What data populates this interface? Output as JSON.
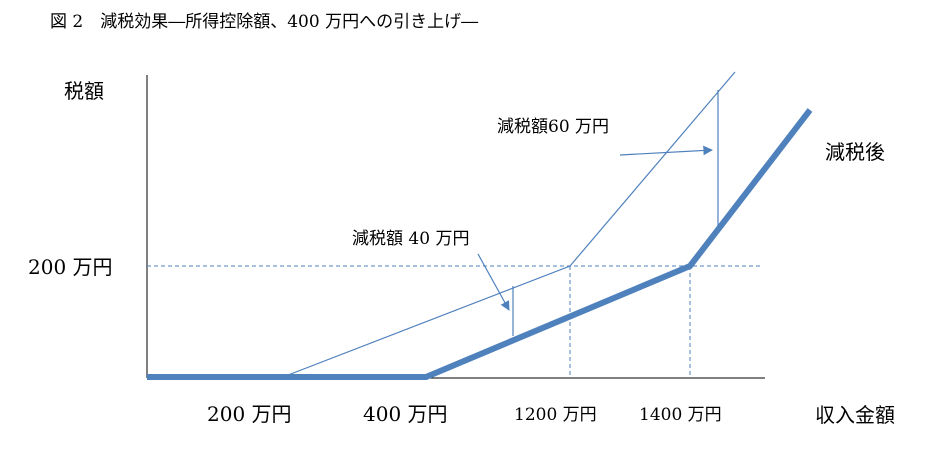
{
  "figure": {
    "title": "図 2　減税効果―所得控除額、400 万円への引き上げ―"
  },
  "axes": {
    "ylabel": "税額",
    "xlabel": "収入金額",
    "y_tick": "200 万円",
    "x_ticks": [
      "200 万円",
      "400 万円",
      "1200 万円",
      "1400 万円"
    ]
  },
  "annotations": {
    "reduction_40": "減税額 40 万円",
    "reduction_60": "減税額60 万円",
    "after_label": "減税後"
  },
  "colors": {
    "line": "#4f81bd",
    "axis": "#000000"
  },
  "chart_data": {
    "type": "line",
    "x_unit": "万円",
    "series": [
      {
        "name": "減税後",
        "points": [
          [
            0,
            0
          ],
          [
            400,
            0
          ],
          [
            1400,
            200
          ],
          [
            1800,
            526
          ]
        ]
      },
      {
        "points": [
          [
            200,
            0
          ],
          [
            1200,
            200
          ],
          [
            1800,
            560
          ]
        ]
      }
    ],
    "reductions": [
      {
        "label": "減税額 40 万円",
        "value": 40
      },
      {
        "label": "減税額60 万円",
        "value": 60
      }
    ]
  }
}
